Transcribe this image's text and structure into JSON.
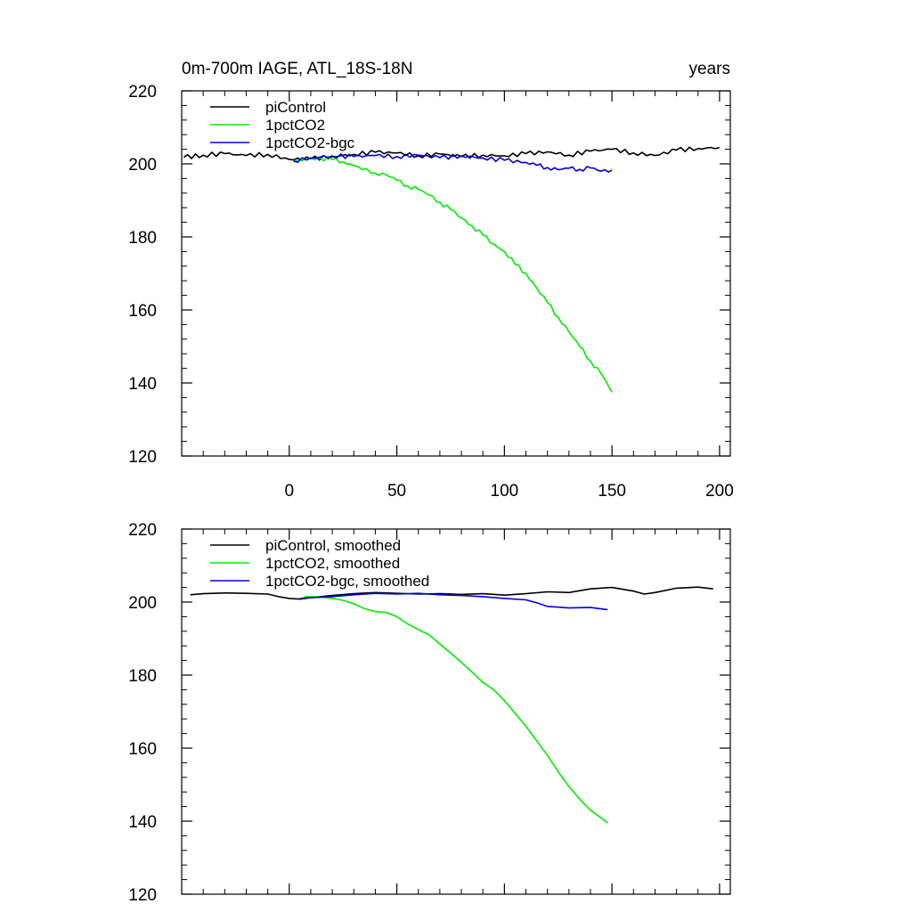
{
  "figure": {
    "title_left": "0m-700m IAGE, ATL_18S-18N",
    "title_right": "years"
  },
  "colors": {
    "piControl": "#000000",
    "1pctCO2": "#00ee00",
    "1pctCO2-bgc": "#0000dd"
  },
  "chart_data": [
    {
      "type": "line",
      "panel": "top",
      "title": "0m-700m IAGE, ATL_18S-18N",
      "units_label": "years",
      "xlabel": "",
      "ylabel": "",
      "xlim": [
        -50,
        205
      ],
      "ylim": [
        120,
        220
      ],
      "x_ticks": [
        0,
        50,
        100,
        150,
        200
      ],
      "x_tick_labels": [
        "0",
        "50",
        "100",
        "150",
        "200"
      ],
      "y_ticks": [
        120,
        140,
        160,
        180,
        200,
        220
      ],
      "y_tick_labels": [
        "120",
        "140",
        "160",
        "180",
        "200",
        "220"
      ],
      "legend": [
        "piControl",
        "1pctCO2",
        "1pctCO2-bgc"
      ],
      "series": [
        {
          "name": "piControl",
          "color": "#000000",
          "x": [
            -49,
            -40,
            -30,
            -20,
            -10,
            0,
            10,
            20,
            30,
            40,
            50,
            60,
            70,
            80,
            90,
            100,
            110,
            120,
            130,
            140,
            150,
            160,
            170,
            180,
            190,
            200
          ],
          "y": [
            201.8,
            202.4,
            202.8,
            202.3,
            202.6,
            201.2,
            201.4,
            202.0,
            202.6,
            203.2,
            203.0,
            202.2,
            202.7,
            202.0,
            202.4,
            202.2,
            202.8,
            203.3,
            202.4,
            203.5,
            204.0,
            203.0,
            202.3,
            203.8,
            204.2,
            204.5
          ]
        },
        {
          "name": "1pctCO2",
          "color": "#00ee00",
          "x": [
            2,
            10,
            20,
            25,
            30,
            40,
            45,
            50,
            55,
            60,
            65,
            70,
            75,
            80,
            85,
            90,
            95,
            100,
            105,
            110,
            115,
            120,
            125,
            130,
            135,
            140,
            145,
            150
          ],
          "y": [
            200.5,
            201.6,
            201.2,
            200.6,
            199.5,
            197.5,
            197.0,
            195.5,
            194.0,
            193.0,
            191.5,
            189.5,
            187.5,
            185.2,
            183.0,
            180.5,
            178.0,
            176.0,
            172.5,
            170.0,
            166.0,
            162.0,
            158.0,
            154.0,
            150.0,
            146.0,
            142.5,
            137.5
          ]
        },
        {
          "name": "1pctCO2-bgc",
          "color": "#0000dd",
          "x": [
            2,
            10,
            20,
            30,
            40,
            50,
            60,
            70,
            80,
            90,
            100,
            110,
            115,
            120,
            125,
            130,
            135,
            140,
            145,
            150
          ],
          "y": [
            200.8,
            201.6,
            202.2,
            202.0,
            202.3,
            202.0,
            202.4,
            201.7,
            202.2,
            201.6,
            201.0,
            200.4,
            199.6,
            199.0,
            198.4,
            198.8,
            198.5,
            198.9,
            198.0,
            198.3
          ]
        }
      ]
    },
    {
      "type": "line",
      "panel": "bottom",
      "title": "",
      "xlabel": "",
      "ylabel": "",
      "xlim": [
        -50,
        205
      ],
      "ylim": [
        120,
        220
      ],
      "x_ticks": [
        0,
        50,
        100,
        150,
        200
      ],
      "x_tick_labels": [],
      "y_ticks": [
        120,
        140,
        160,
        180,
        200,
        220
      ],
      "y_tick_labels": [
        "120",
        "140",
        "160",
        "180",
        "200",
        "220"
      ],
      "legend": [
        "piControl, smoothed",
        "1pctCO2, smoothed",
        "1pctCO2-bgc, smoothed"
      ],
      "series": [
        {
          "name": "piControl, smoothed",
          "color": "#000000",
          "x": [
            -46,
            -40,
            -30,
            -20,
            -10,
            -5,
            0,
            5,
            10,
            20,
            30,
            40,
            50,
            60,
            70,
            80,
            90,
            100,
            110,
            120,
            130,
            140,
            150,
            160,
            165,
            170,
            180,
            190,
            197
          ],
          "y": [
            202.0,
            202.3,
            202.5,
            202.4,
            202.2,
            201.5,
            201.0,
            200.8,
            201.2,
            201.8,
            202.3,
            202.6,
            202.4,
            202.2,
            202.3,
            202.1,
            202.3,
            201.9,
            202.3,
            202.8,
            202.6,
            203.6,
            204.0,
            203.0,
            202.2,
            202.6,
            203.8,
            204.1,
            203.6
          ]
        },
        {
          "name": "1pctCO2, smoothed",
          "color": "#00ee00",
          "x": [
            7,
            15,
            20,
            25,
            30,
            35,
            40,
            45,
            50,
            55,
            60,
            65,
            70,
            75,
            80,
            85,
            90,
            95,
            100,
            105,
            110,
            115,
            120,
            125,
            130,
            135,
            140,
            148
          ],
          "y": [
            201.5,
            201.4,
            201.0,
            200.5,
            199.5,
            198.2,
            197.4,
            197.2,
            196.0,
            194.0,
            192.5,
            191.0,
            188.5,
            186.0,
            183.5,
            180.8,
            178.0,
            176.0,
            173.0,
            169.5,
            166.0,
            162.0,
            158.0,
            153.5,
            149.5,
            146.0,
            143.0,
            139.5
          ]
        },
        {
          "name": "1pctCO2-bgc, smoothed",
          "color": "#0000dd",
          "x": [
            5,
            10,
            20,
            30,
            40,
            50,
            60,
            70,
            80,
            90,
            100,
            110,
            115,
            120,
            125,
            130,
            140,
            148
          ],
          "y": [
            201.0,
            201.2,
            201.5,
            202.0,
            202.4,
            202.2,
            202.4,
            202.0,
            201.8,
            201.5,
            201.0,
            200.6,
            199.8,
            198.8,
            198.6,
            198.4,
            198.5,
            197.9
          ]
        }
      ]
    }
  ]
}
